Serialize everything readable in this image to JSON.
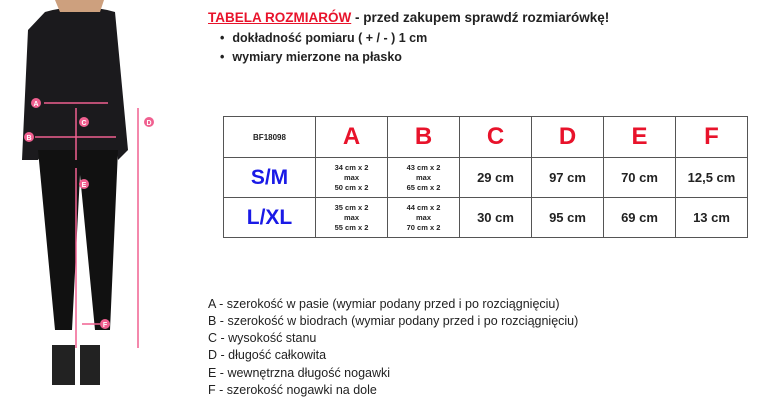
{
  "header": {
    "title_red": "TABELA ROZMIARÓW",
    "title_rest": " - przed zakupem sprawdź rozmiarówkę!",
    "bullets": [
      "dokładność pomiaru ( + / - ) 1 cm",
      "wymiary mierzone na płasko"
    ]
  },
  "figure": {
    "labels": [
      "A",
      "B",
      "C",
      "D",
      "E",
      "F"
    ],
    "accent": "#f06090"
  },
  "table": {
    "product_code": "BF18098",
    "columns": [
      "A",
      "B",
      "C",
      "D",
      "E",
      "F"
    ],
    "rows": [
      {
        "size": "S/M",
        "a": [
          "34 cm x 2",
          "max",
          "50 cm x 2"
        ],
        "b": [
          "43 cm x 2",
          "max",
          "65 cm x 2"
        ],
        "c": "29 cm",
        "d": "97 cm",
        "e": "70 cm",
        "f": "12,5 cm"
      },
      {
        "size": "L/XL",
        "a": [
          "35 cm x 2",
          "max",
          "55 cm x 2"
        ],
        "b": [
          "44 cm x 2",
          "max",
          "70 cm x 2"
        ],
        "c": "30 cm",
        "d": "95 cm",
        "e": "69 cm",
        "f": "13 cm"
      }
    ]
  },
  "legend": [
    "A - szerokość w pasie (wymiar podany przed i po rozciągnięciu)",
    "B - szerokość w biodrach (wymiar podany przed i po rozciągnięciu)",
    "C - wysokość stanu",
    "D - długość całkowita",
    "E - wewnętrzna długość nogawki",
    "F - szerokość nogawki na dole"
  ],
  "colors": {
    "red": "#e8132b",
    "blue": "#1a1ae6"
  }
}
